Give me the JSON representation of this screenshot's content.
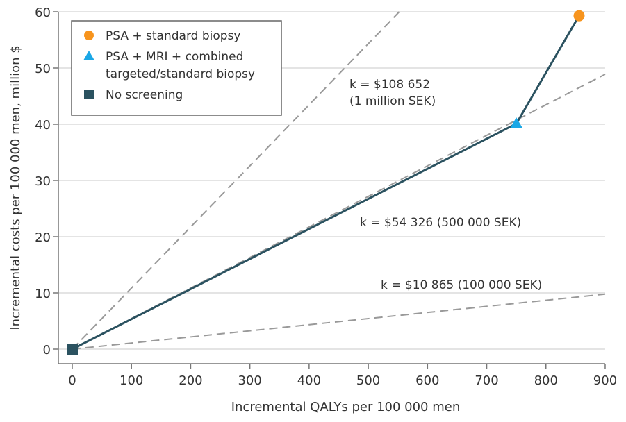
{
  "chart_data": {
    "type": "line",
    "title": "",
    "xlabel": "Incremental QALYs per 100 000 men",
    "ylabel": "Incremental costs per 100 000 men, million $",
    "xlim": [
      -25,
      900
    ],
    "ylim": [
      -4,
      60
    ],
    "xticks": [
      0,
      100,
      200,
      300,
      400,
      500,
      600,
      700,
      800,
      900
    ],
    "yticks": [
      0,
      10,
      20,
      30,
      40,
      50,
      60
    ],
    "grid": "horizontal",
    "legend_position": "top-left",
    "legend": [
      {
        "label": "PSA + standard biopsy",
        "marker": "circle",
        "color": "#f7941d"
      },
      {
        "label_lines": [
          "PSA + MRI + combined",
          "targeted/standard biopsy"
        ],
        "marker": "triangle",
        "color": "#1aa7e6"
      },
      {
        "label": "No screening",
        "marker": "square",
        "color": "#2b5260"
      }
    ],
    "points": [
      {
        "name": "No screening",
        "x": 0,
        "y": 0,
        "marker": "square",
        "color": "#2b5260"
      },
      {
        "name": "PSA + MRI + combined targeted/standard biopsy",
        "x": 750,
        "y": 40.1,
        "marker": "triangle",
        "color": "#1aa7e6"
      },
      {
        "name": "PSA + standard biopsy",
        "x": 856,
        "y": 59.3,
        "marker": "circle",
        "color": "#f7941d"
      }
    ],
    "frontier": {
      "color": "#2b5260",
      "x": [
        0,
        750,
        856
      ],
      "y": [
        0,
        40.1,
        59.3
      ]
    },
    "thresholds": [
      {
        "k": 108652,
        "label_lines": [
          "k = $108 652",
          "(1 million SEK)"
        ],
        "color": "#999999"
      },
      {
        "k": 54326,
        "label_lines": [
          "k = $54 326 (500 000 SEK)"
        ],
        "color": "#999999"
      },
      {
        "k": 10865,
        "label_lines": [
          "k = $10 865 (100 000 SEK)"
        ],
        "color": "#999999"
      }
    ]
  }
}
